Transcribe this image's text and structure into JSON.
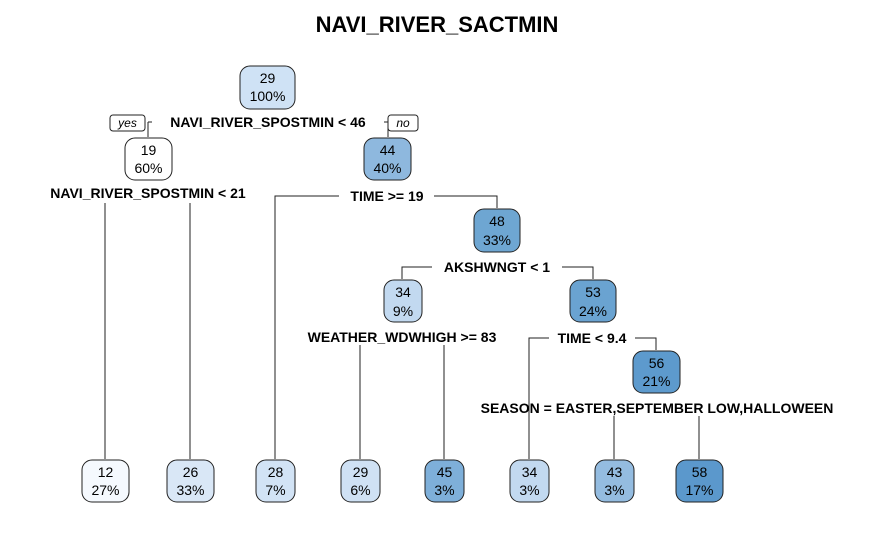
{
  "title": "NAVI_RIVER_SACTMIN",
  "branch_labels": {
    "yes": "yes",
    "no": "no"
  },
  "colors": {
    "n29": "#cfe2f5",
    "n19": "#ffffff",
    "n44": "#8eb8de",
    "n48": "#6ea6d2",
    "n34a": "#c2d9f0",
    "n53": "#6aa3d1",
    "n56": "#5d9acd",
    "l12": "#f5f9fe",
    "l26": "#d9e7f6",
    "l28": "#d2e3f5",
    "l29": "#cfe1f4",
    "l45": "#7eafd9",
    "l34": "#c2d9f0",
    "l43": "#94bce0",
    "l58": "#5b98cc"
  },
  "nodes": [
    {
      "id": "n29",
      "value": "29",
      "pct": "100%"
    },
    {
      "id": "n19",
      "value": "19",
      "pct": "60%"
    },
    {
      "id": "n44",
      "value": "44",
      "pct": "40%"
    },
    {
      "id": "n48",
      "value": "48",
      "pct": "33%"
    },
    {
      "id": "n34a",
      "value": "34",
      "pct": "9%"
    },
    {
      "id": "n53",
      "value": "53",
      "pct": "24%"
    },
    {
      "id": "n56",
      "value": "56",
      "pct": "21%"
    },
    {
      "id": "l12",
      "value": "12",
      "pct": "27%"
    },
    {
      "id": "l26",
      "value": "26",
      "pct": "33%"
    },
    {
      "id": "l28",
      "value": "28",
      "pct": "7%"
    },
    {
      "id": "l29",
      "value": "29",
      "pct": "6%"
    },
    {
      "id": "l45",
      "value": "45",
      "pct": "3%"
    },
    {
      "id": "l34",
      "value": "34",
      "pct": "3%"
    },
    {
      "id": "l43",
      "value": "43",
      "pct": "3%"
    },
    {
      "id": "l58",
      "value": "58",
      "pct": "17%"
    }
  ],
  "splits": [
    {
      "id": "s1",
      "label": "NAVI_RIVER_SPOSTMIN < 46"
    },
    {
      "id": "s2",
      "label": "NAVI_RIVER_SPOSTMIN < 21"
    },
    {
      "id": "s3",
      "label": "TIME >= 19"
    },
    {
      "id": "s4",
      "label": "AKSHWNGT < 1"
    },
    {
      "id": "s5",
      "label": "WEATHER_WDWHIGH >= 83"
    },
    {
      "id": "s6",
      "label": "TIME < 9.4"
    },
    {
      "id": "s7",
      "label": "SEASON = EASTER,SEPTEMBER LOW,HALLOWEEN"
    }
  ]
}
